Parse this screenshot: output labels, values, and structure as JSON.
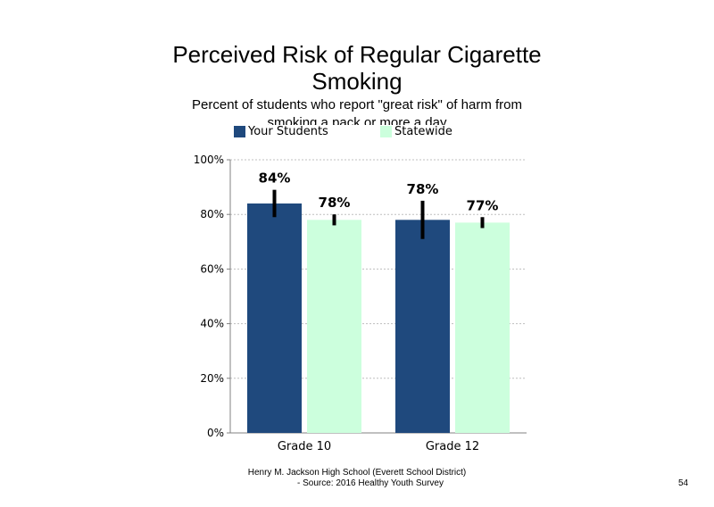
{
  "slide": {
    "title": "Perceived Risk of Regular Cigarette Smoking",
    "subtitle": "Percent of students who report \"great risk\" of harm from smoking a pack or more a day",
    "footer_line1": "Henry M. Jackson High School (Everett School District)",
    "footer_line2": "- Source: 2016 Healthy Youth Survey",
    "page_number": "54"
  },
  "chart_data": {
    "type": "bar",
    "title": "Perceived Risk of Regular Cigarette Smoking",
    "subtitle": "Percent of students who report \"great risk\" of harm from smoking a pack or more a day",
    "categories": [
      "Grade 10",
      "Grade 12"
    ],
    "series": [
      {
        "name": "Your Students",
        "color": "#1f497d",
        "values": [
          84,
          78
        ],
        "labels": [
          "84%",
          "78%"
        ],
        "error_low": [
          79,
          71
        ],
        "error_high": [
          89,
          85
        ]
      },
      {
        "name": "Statewide",
        "color": "#ccffdd",
        "values": [
          78,
          77
        ],
        "labels": [
          "78%",
          "77%"
        ],
        "error_low": [
          76,
          75
        ],
        "error_high": [
          80,
          79
        ]
      }
    ],
    "ylim": [
      0,
      100
    ],
    "yticks": [
      0,
      20,
      40,
      60,
      80,
      100
    ],
    "ytick_labels": [
      "0%",
      "20%",
      "40%",
      "60%",
      "80%",
      "100%"
    ],
    "grid": "horizontal dotted",
    "legend_position": "top"
  }
}
